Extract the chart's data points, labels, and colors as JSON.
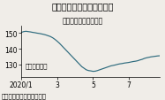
{
  "title": "価格は小幅に下げに転じた",
  "subtitle": "レギュラー、全国平均",
  "ylabel": "円／リットル",
  "source": "（出所）資源エネルギー庁",
  "xlim": [
    0,
    31
  ],
  "ylim": [
    122,
    155
  ],
  "yticks": [
    130,
    140,
    150
  ],
  "xtick_positions": [
    0,
    8,
    16,
    24
  ],
  "xtick_labels": [
    "2020/1",
    "3",
    "5",
    "7"
  ],
  "line_color": "#2e6b7e",
  "bg_color": "#f0ede8",
  "title_fontsize": 7.0,
  "subtitle_fontsize": 5.5,
  "tick_fontsize": 5.5,
  "source_fontsize": 5.0,
  "ylabel_fontsize": 5.0,
  "x": [
    0,
    0.5,
    1,
    1.5,
    2,
    2.5,
    3,
    3.5,
    4,
    4.5,
    5,
    5.5,
    6,
    6.5,
    7,
    7.5,
    8,
    8.5,
    9,
    9.5,
    10,
    10.5,
    11,
    11.5,
    12,
    12.5,
    13,
    13.5,
    14,
    14.5,
    15,
    15.5,
    16,
    16.5,
    17,
    17.5,
    18,
    18.5,
    19,
    19.5,
    20,
    20.5,
    21,
    21.5,
    22,
    22.5,
    23,
    23.5,
    24,
    24.5,
    25,
    25.5,
    26,
    26.5,
    27,
    27.5,
    28,
    28.5,
    29,
    29.5,
    30,
    30.5,
    31
  ],
  "y": [
    150.5,
    151,
    151.2,
    151.0,
    150.8,
    150.5,
    150.3,
    150.0,
    149.8,
    149.5,
    149.2,
    148.8,
    148.3,
    147.8,
    147.0,
    146.0,
    144.8,
    143.5,
    142.0,
    140.5,
    139.0,
    137.5,
    136.0,
    134.5,
    133.0,
    131.5,
    130.0,
    128.5,
    127.5,
    126.5,
    126.0,
    125.8,
    125.5,
    125.6,
    126.0,
    126.5,
    127.0,
    127.5,
    128.0,
    128.5,
    129.0,
    129.3,
    129.6,
    130.0,
    130.3,
    130.5,
    130.8,
    131.0,
    131.2,
    131.5,
    131.8,
    132.0,
    132.3,
    132.8,
    133.2,
    133.8,
    134.2,
    134.5,
    134.8,
    135.0,
    135.2,
    135.4,
    135.5
  ]
}
